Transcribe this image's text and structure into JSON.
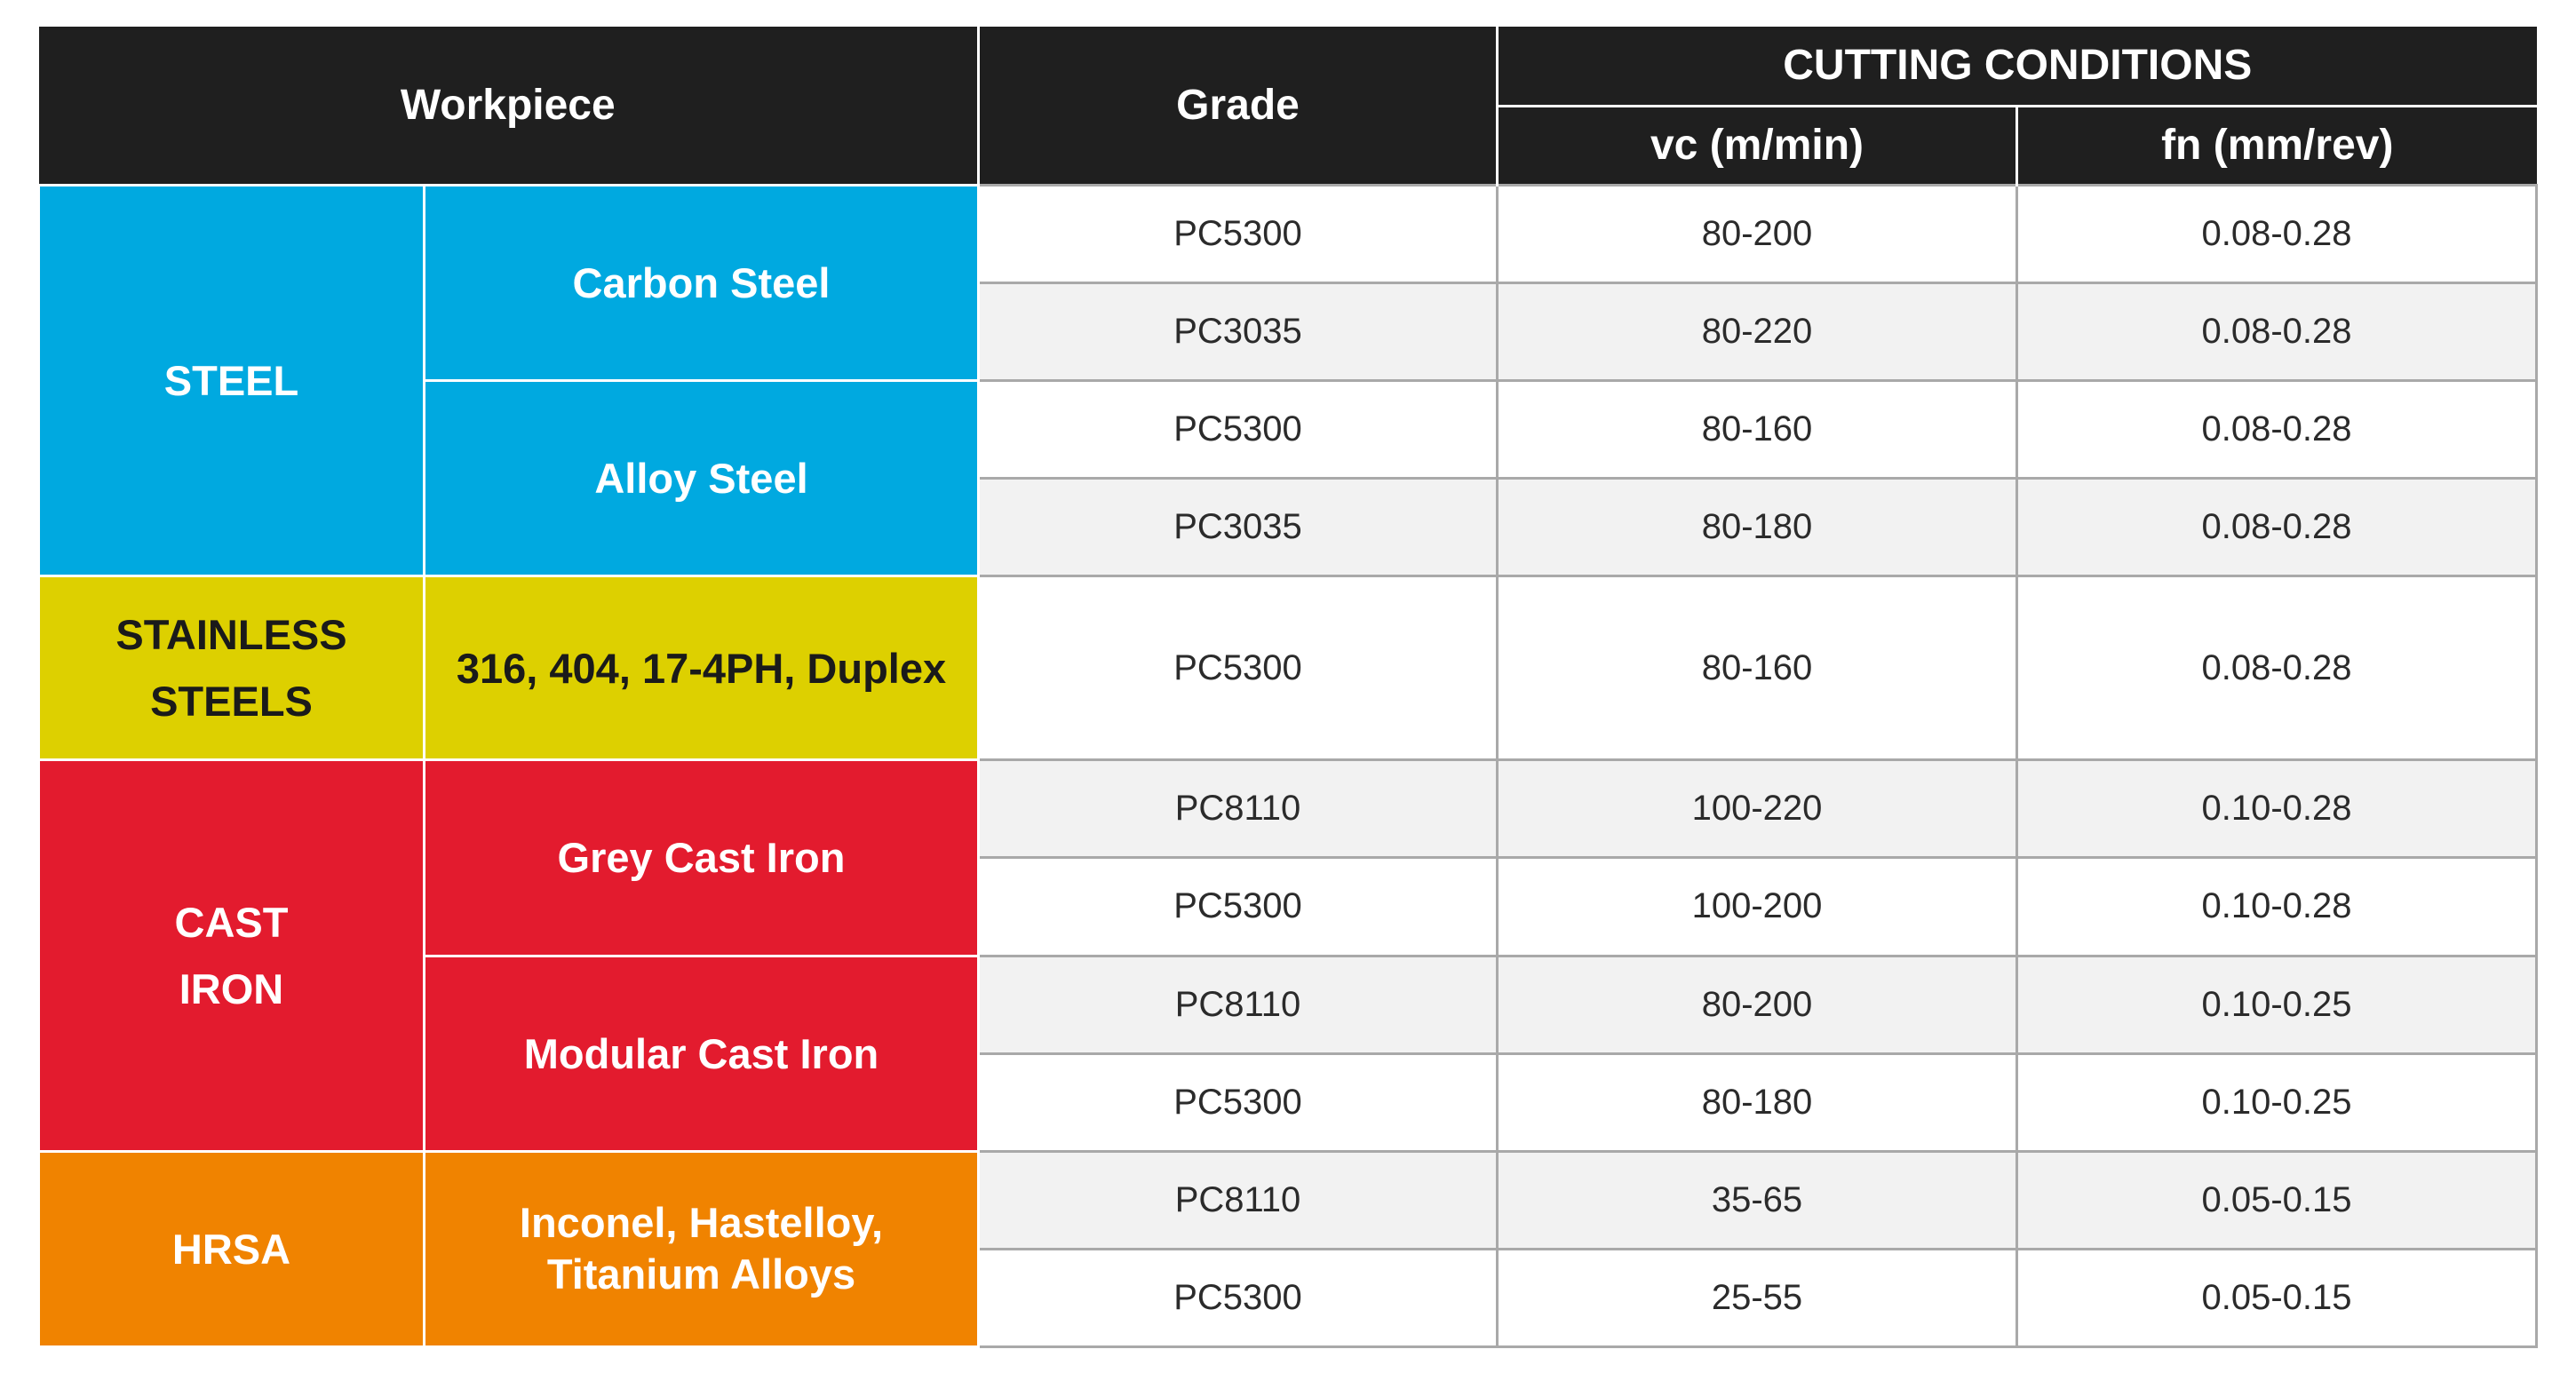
{
  "header": {
    "workpiece": "Workpiece",
    "grade": "Grade",
    "cutting_conditions": "CUTTING CONDITIONS",
    "vc": "vc (m/min)",
    "fn": "fn (mm/rev)"
  },
  "colors": {
    "header_bg": "#1f1f1f",
    "steel": "#00a9e0",
    "stainless": "#ddd000",
    "cast_iron": "#e31b2e",
    "hrsa": "#f08300"
  },
  "groups": [
    {
      "name": "STEEL",
      "materials": [
        {
          "name": "Carbon Steel",
          "rows": [
            {
              "grade": "PC5300",
              "vc": "80-200",
              "fn": "0.08-0.28"
            },
            {
              "grade": "PC3035",
              "vc": "80-220",
              "fn": "0.08-0.28"
            }
          ]
        },
        {
          "name": "Alloy Steel",
          "rows": [
            {
              "grade": "PC5300",
              "vc": "80-160",
              "fn": "0.08-0.28"
            },
            {
              "grade": "PC3035",
              "vc": "80-180",
              "fn": "0.08-0.28"
            }
          ]
        }
      ]
    },
    {
      "name_lines": [
        "STAINLESS",
        "STEELS"
      ],
      "materials": [
        {
          "name": "316, 404, 17-4PH, Duplex",
          "rows": [
            {
              "grade": "PC5300",
              "vc": "80-160",
              "fn": "0.08-0.28"
            }
          ]
        }
      ]
    },
    {
      "name_lines": [
        "CAST",
        "IRON"
      ],
      "materials": [
        {
          "name": "Grey Cast Iron",
          "rows": [
            {
              "grade": "PC8110",
              "vc": "100-220",
              "fn": "0.10-0.28"
            },
            {
              "grade": "PC5300",
              "vc": "100-200",
              "fn": "0.10-0.28"
            }
          ]
        },
        {
          "name": "Modular Cast Iron",
          "rows": [
            {
              "grade": "PC8110",
              "vc": "80-200",
              "fn": "0.10-0.25"
            },
            {
              "grade": "PC5300",
              "vc": "80-180",
              "fn": "0.10-0.25"
            }
          ]
        }
      ]
    },
    {
      "name": "HRSA",
      "materials": [
        {
          "name_lines": [
            "Inconel, Hastelloy,",
            "Titanium Alloys"
          ],
          "rows": [
            {
              "grade": "PC8110",
              "vc": "35-65",
              "fn": "0.05-0.15"
            },
            {
              "grade": "PC5300",
              "vc": "25-55",
              "fn": "0.05-0.15"
            }
          ]
        }
      ]
    }
  ]
}
